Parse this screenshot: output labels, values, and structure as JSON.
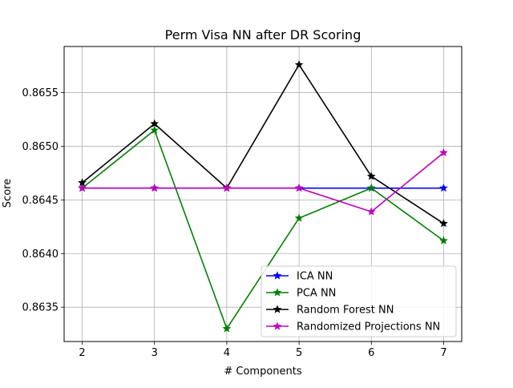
{
  "chart_data": {
    "type": "line",
    "title": "Perm Visa NN after DR Scoring",
    "xlabel": "# Components",
    "ylabel": "Score",
    "x": [
      2,
      3,
      4,
      5,
      6,
      7
    ],
    "xlim": [
      1.75,
      7.25
    ],
    "ylim": [
      0.86318,
      0.86593
    ],
    "xticks": [
      "2",
      "3",
      "4",
      "5",
      "6",
      "7"
    ],
    "yticks": [
      0.8635,
      0.864,
      0.8645,
      0.865,
      0.8655
    ],
    "ytick_labels": [
      "0.8635",
      "0.8640",
      "0.8645",
      "0.8650",
      "0.8655"
    ],
    "grid": true,
    "legend_position": "lower-right",
    "marker": "star",
    "series": [
      {
        "name": "ICA NN",
        "color": "#0000ff",
        "values": [
          0.86461,
          0.86461,
          0.86461,
          0.86461,
          0.86461,
          0.86461
        ]
      },
      {
        "name": "PCA NN",
        "color": "#008000",
        "values": [
          0.86461,
          0.86515,
          0.8633,
          0.86433,
          0.86461,
          0.86412
        ]
      },
      {
        "name": "Random Forest NN",
        "color": "#000000",
        "values": [
          0.86466,
          0.86521,
          0.86461,
          0.86576,
          0.86472,
          0.86428
        ]
      },
      {
        "name": "Randomized Projections NN",
        "color": "#bf00bf",
        "values": [
          0.86461,
          0.86461,
          0.86461,
          0.86461,
          0.86439,
          0.86494
        ]
      }
    ]
  }
}
